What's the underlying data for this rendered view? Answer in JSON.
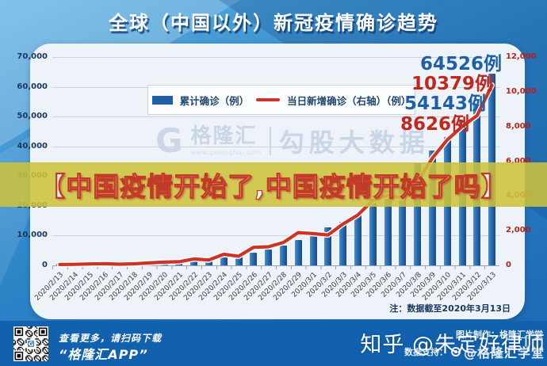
{
  "header": {
    "title": "全球（中国以外）新冠疫情确诊趋势"
  },
  "overlay_banner": {
    "text": "【中国疫情开始了,中国疫情开始了吗】"
  },
  "chart_data": {
    "type": "bar+line-dual-axis",
    "title": "全球（中国以外）新冠疫情确诊趋势",
    "categories": [
      "2020/2/13",
      "2020/2/14",
      "2020/2/15",
      "2020/2/16",
      "2020/2/17",
      "2020/2/18",
      "2020/2/19",
      "2020/2/20",
      "2020/2/21",
      "2020/2/22",
      "2020/2/23",
      "2020/2/24",
      "2020/2/25",
      "2020/2/26",
      "2020/2/27",
      "2020/2/28",
      "2020/2/29",
      "2020/3/1",
      "2020/3/2",
      "2020/3/3",
      "2020/3/4",
      "2020/3/5",
      "2020/3/6",
      "2020/3/7",
      "2020/3/8",
      "2020/3/9",
      "2020/3/10",
      "2020/3/11",
      "2020/3/12",
      "2020/3/13"
    ],
    "series": [
      {
        "name": "累计确诊（例）",
        "type": "bar",
        "axis": "left",
        "color": "#1f5fa8",
        "values": [
          580,
          610,
          690,
          780,
          800,
          880,
          1020,
          1200,
          1400,
          1770,
          2070,
          2710,
          3230,
          4270,
          5330,
          6650,
          8550,
          10290,
          12670,
          14770,
          17370,
          21110,
          25400,
          28730,
          34400,
          38620,
          43100,
          48760,
          54143,
          64526
        ]
      },
      {
        "name": "当日新增确诊（右轴）（例）",
        "type": "line",
        "axis": "right",
        "color": "#cd3428",
        "values": [
          50,
          60,
          80,
          95,
          70,
          90,
          140,
          185,
          210,
          370,
          310,
          640,
          530,
          1040,
          1070,
          1320,
          1890,
          1830,
          1750,
          2380,
          2900,
          3740,
          4030,
          3890,
          4800,
          6180,
          7230,
          8000,
          8626,
          10379
        ]
      }
    ],
    "left_axis": {
      "min": 0,
      "max": 70000,
      "step": 10000,
      "labels": [
        "0",
        "10,000",
        "20,000",
        "30,000",
        "40,000",
        "50,000",
        "60,000",
        "70,000"
      ]
    },
    "right_axis": {
      "min": 0,
      "max": 12000,
      "step": 2000,
      "labels": [
        "0",
        "2,000",
        "4,000",
        "6,000",
        "8,000",
        "10,000",
        "12,000"
      ]
    },
    "annotations": [
      {
        "text": "64526例",
        "color": "#1f5fa8"
      },
      {
        "text": "10379例",
        "color": "#c2271b"
      },
      {
        "text": "54143例",
        "color": "#1f5fa8"
      },
      {
        "text": "8626例",
        "color": "#c2271b"
      }
    ],
    "legend_position": "top-center",
    "grid": true,
    "note": "注：数据截至2020年3月13日",
    "watermark": {
      "logo_icon": "gelonghui-logo-icon",
      "brand": "格隆汇",
      "url": "www.gelonghui.com",
      "product": "勾股大数据"
    }
  },
  "footer": {
    "qr_icon": "qr-code",
    "qr_caption_line1": "查看更多，请扫码下载",
    "qr_caption_line2": "“格隆汇APP”",
    "credit_line1": "图片制作：格隆汇学堂",
    "credit_line2_prefix": "数据支持：",
    "credit_line2_icon": "weibo-icon",
    "credit_line2_name": "@格隆汇学堂",
    "watermark": "知乎 @朱定好律师"
  },
  "colors": {
    "bar_blue": "#1f5fa8",
    "line_red": "#cd3428",
    "banner_yellow": "#cec23c",
    "left_axis_text": "#17375e",
    "right_axis_text": "#b82015",
    "footer_blue": "#1161ae"
  }
}
